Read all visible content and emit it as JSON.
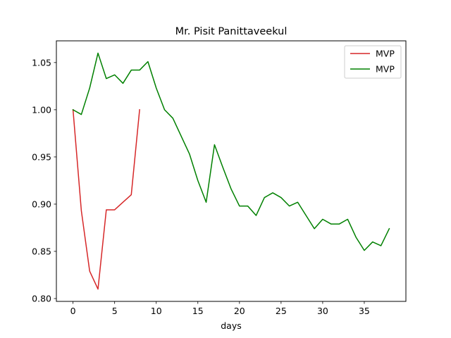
{
  "chart_data": {
    "type": "line",
    "title": "Mr. Pisit Panittaveekul",
    "xlabel": "days",
    "ylabel": "",
    "xlim": [
      -2,
      40
    ],
    "ylim": [
      0.797,
      1.073
    ],
    "x_ticks": [
      0,
      5,
      10,
      15,
      20,
      25,
      30,
      35
    ],
    "x_tick_labels": [
      "0",
      "5",
      "10",
      "15",
      "20",
      "25",
      "30",
      "35"
    ],
    "y_ticks": [
      0.8,
      0.85,
      0.9,
      0.95,
      1.0,
      1.05
    ],
    "y_tick_labels": [
      "0.80",
      "0.85",
      "0.90",
      "0.95",
      "1.00",
      "1.05"
    ],
    "grid": false,
    "legend_position": "top-right",
    "series": [
      {
        "name": "MVP",
        "color": "#d62728",
        "x": [
          0,
          1,
          2,
          3,
          4,
          5,
          6,
          7,
          8
        ],
        "y": [
          1.0,
          0.893,
          0.829,
          0.81,
          0.894,
          0.894,
          0.902,
          0.91,
          1.0
        ]
      },
      {
        "name": "MVP",
        "color": "#008000",
        "x": [
          0,
          1,
          2,
          3,
          4,
          5,
          6,
          7,
          8,
          9,
          10,
          11,
          12,
          13,
          14,
          15,
          16,
          17,
          18,
          19,
          20,
          21,
          22,
          23,
          24,
          25,
          26,
          27,
          28,
          29,
          30,
          31,
          32,
          33,
          34,
          35,
          36,
          37,
          38
        ],
        "y": [
          1.0,
          0.995,
          1.023,
          1.06,
          1.033,
          1.037,
          1.028,
          1.042,
          1.042,
          1.051,
          1.023,
          1.0,
          0.991,
          0.972,
          0.953,
          0.925,
          0.902,
          0.963,
          0.939,
          0.916,
          0.898,
          0.898,
          0.888,
          0.907,
          0.912,
          0.907,
          0.898,
          0.902,
          0.888,
          0.874,
          0.884,
          0.879,
          0.879,
          0.884,
          0.865,
          0.851,
          0.86,
          0.856,
          0.874
        ]
      }
    ]
  }
}
